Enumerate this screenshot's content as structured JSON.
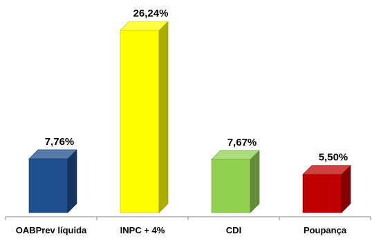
{
  "chart_data": {
    "type": "bar",
    "title": "",
    "xlabel": "",
    "ylabel": "",
    "categories": [
      "OABPrev líquida",
      "INPC + 4%",
      "CDI",
      "Poupança"
    ],
    "values": [
      7.76,
      26.24,
      7.67,
      5.5
    ],
    "value_labels": [
      "7,76%",
      "26,24%",
      "7,67%",
      "5,50%"
    ],
    "ylim": [
      0,
      26.24
    ],
    "grid": false,
    "legend": "none",
    "style": "3d-column",
    "colors": [
      "#1f4e8c",
      "#ffff00",
      "#92d050",
      "#c00000"
    ]
  }
}
